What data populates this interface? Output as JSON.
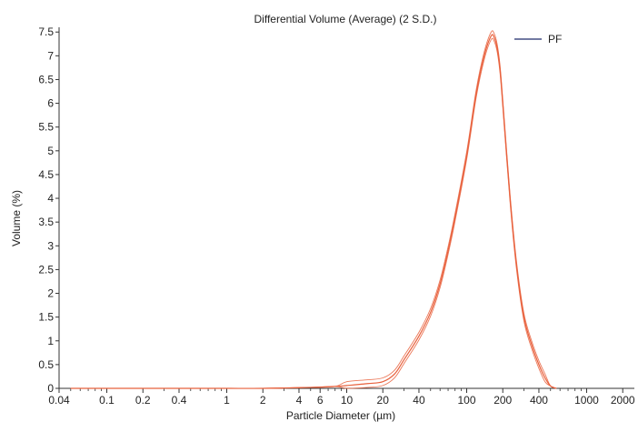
{
  "chart_data": {
    "type": "line",
    "title": "Differential Volume (Average) (2 S.D.)",
    "xlabel": "Particle Diameter (µm)",
    "ylabel": "Volume (%)",
    "xscale": "log",
    "xlim": [
      0.04,
      2500
    ],
    "ylim": [
      0,
      7.6
    ],
    "x_ticks": [
      0.04,
      0.1,
      0.2,
      0.4,
      1,
      2,
      4,
      6,
      10,
      20,
      40,
      100,
      200,
      400,
      1000,
      2000
    ],
    "x_tick_labels": [
      "0.04",
      "0.1",
      "0.2",
      "0.4",
      "1",
      "2",
      "4",
      "6",
      "10",
      "20",
      "40",
      "100",
      "200",
      "400",
      "1000",
      "2000"
    ],
    "y_ticks": [
      0,
      0.5,
      1,
      1.5,
      2,
      2.5,
      3,
      3.5,
      4,
      4.5,
      5,
      5.5,
      6,
      6.5,
      7,
      7.5
    ],
    "y_tick_labels": [
      "0",
      "0.5",
      "1",
      "1.5",
      "2",
      "2.5",
      "3",
      "3.5",
      "4",
      "4.5",
      "5",
      "5.5",
      "6",
      "6.5",
      "7",
      "7.5"
    ],
    "grid": false,
    "legend": {
      "position": "top-right",
      "entries": [
        {
          "label": "PF",
          "color": "#1f2a6b"
        }
      ]
    },
    "series": [
      {
        "name": "PF",
        "color": "#e8603c",
        "x": [
          0.05,
          0.1,
          0.5,
          1,
          2,
          5,
          8,
          10,
          15,
          20,
          25,
          30,
          40,
          50,
          60,
          70,
          80,
          100,
          120,
          140,
          160,
          170,
          180,
          190,
          200,
          230,
          260,
          300,
          350,
          400,
          450,
          500,
          560
        ],
        "values": [
          0.0,
          0.0,
          0.0,
          0.0,
          0.0,
          0.02,
          0.04,
          0.06,
          0.1,
          0.14,
          0.3,
          0.6,
          1.1,
          1.6,
          2.2,
          2.9,
          3.6,
          4.9,
          6.2,
          7.0,
          7.42,
          7.38,
          7.15,
          6.7,
          6.0,
          4.0,
          2.6,
          1.5,
          0.9,
          0.5,
          0.22,
          0.05,
          0.0
        ],
        "band_offsets": [
          -0.08,
          0.08
        ]
      }
    ]
  }
}
